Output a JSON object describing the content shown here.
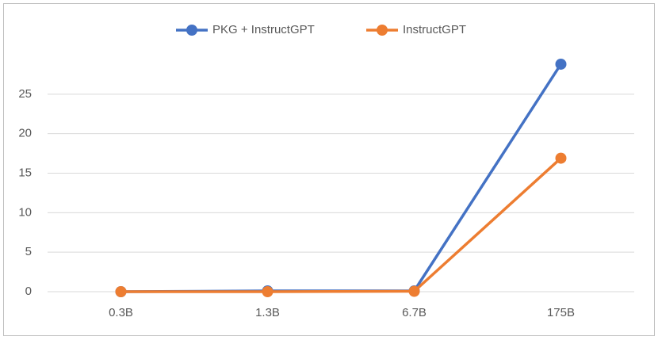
{
  "chart_data": {
    "type": "line",
    "categories": [
      "0.3B",
      "1.3B",
      "6.7B",
      "175B"
    ],
    "series": [
      {
        "name": "PKG + InstructGPT",
        "color": "#4472c4",
        "values": [
          0,
          0.1,
          0.1,
          28.8
        ]
      },
      {
        "name": "InstructGPT",
        "color": "#ed7d31",
        "values": [
          0,
          0,
          0.05,
          16.9
        ]
      }
    ],
    "ylim": [
      0,
      30
    ],
    "yticks": [
      0,
      5,
      10,
      15,
      20,
      25
    ],
    "grid": true,
    "legend": "top"
  }
}
